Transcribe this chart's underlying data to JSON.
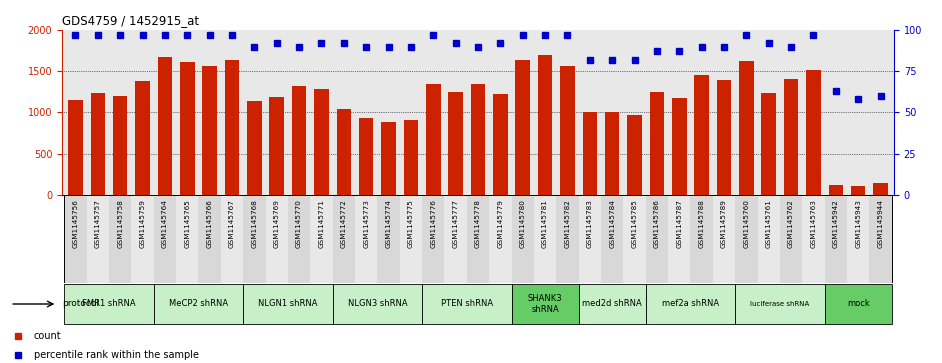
{
  "title": "GDS4759 / 1452915_at",
  "samples": [
    "GSM1145756",
    "GSM1145757",
    "GSM1145758",
    "GSM1145759",
    "GSM1145764",
    "GSM1145765",
    "GSM1145766",
    "GSM1145767",
    "GSM1145768",
    "GSM1145769",
    "GSM1145770",
    "GSM1145771",
    "GSM1145772",
    "GSM1145773",
    "GSM1145774",
    "GSM1145775",
    "GSM1145776",
    "GSM1145777",
    "GSM1145778",
    "GSM1145779",
    "GSM1145780",
    "GSM1145781",
    "GSM1145782",
    "GSM1145783",
    "GSM1145784",
    "GSM1145785",
    "GSM1145786",
    "GSM1145787",
    "GSM1145788",
    "GSM1145789",
    "GSM1145760",
    "GSM1145761",
    "GSM1145762",
    "GSM1145763",
    "GSM1145942",
    "GSM1145943",
    "GSM1145944"
  ],
  "counts": [
    1150,
    1240,
    1195,
    1380,
    1670,
    1610,
    1560,
    1640,
    1145,
    1190,
    1320,
    1280,
    1040,
    930,
    880,
    910,
    1340,
    1245,
    1340,
    1220,
    1640,
    1700,
    1565,
    1010,
    1005,
    965,
    1250,
    1175,
    1450,
    1390,
    1620,
    1240,
    1400,
    1520,
    120,
    110,
    140
  ],
  "percentiles": [
    97,
    97,
    97,
    97,
    97,
    97,
    97,
    97,
    90,
    92,
    90,
    92,
    92,
    90,
    90,
    90,
    97,
    92,
    90,
    92,
    97,
    97,
    97,
    82,
    82,
    82,
    87,
    87,
    90,
    90,
    97,
    92,
    90,
    97,
    63,
    58,
    60
  ],
  "protocols": [
    {
      "label": "FMR1 shRNA",
      "start": 0,
      "end": 4,
      "color": "#c8f0c8"
    },
    {
      "label": "MeCP2 shRNA",
      "start": 4,
      "end": 8,
      "color": "#c8f0c8"
    },
    {
      "label": "NLGN1 shRNA",
      "start": 8,
      "end": 12,
      "color": "#c8f0c8"
    },
    {
      "label": "NLGN3 shRNA",
      "start": 12,
      "end": 16,
      "color": "#c8f0c8"
    },
    {
      "label": "PTEN shRNA",
      "start": 16,
      "end": 20,
      "color": "#c8f0c8"
    },
    {
      "label": "SHANK3\nshRNA",
      "start": 20,
      "end": 23,
      "color": "#66cc66"
    },
    {
      "label": "med2d shRNA",
      "start": 23,
      "end": 26,
      "color": "#c8f0c8"
    },
    {
      "label": "mef2a shRNA",
      "start": 26,
      "end": 30,
      "color": "#c8f0c8"
    },
    {
      "label": "luciferase shRNA",
      "start": 30,
      "end": 34,
      "color": "#c8f0c8"
    },
    {
      "label": "mock",
      "start": 34,
      "end": 37,
      "color": "#66cc66"
    }
  ],
  "bar_color": "#cc2200",
  "dot_color": "#0000cc",
  "ylim_left": [
    0,
    2000
  ],
  "ylim_right": [
    0,
    100
  ],
  "yticks_left": [
    0,
    500,
    1000,
    1500,
    2000
  ],
  "yticks_right": [
    0,
    25,
    50,
    75,
    100
  ],
  "chart_bg": "#e8e8e8",
  "fig_bg": "#ffffff"
}
